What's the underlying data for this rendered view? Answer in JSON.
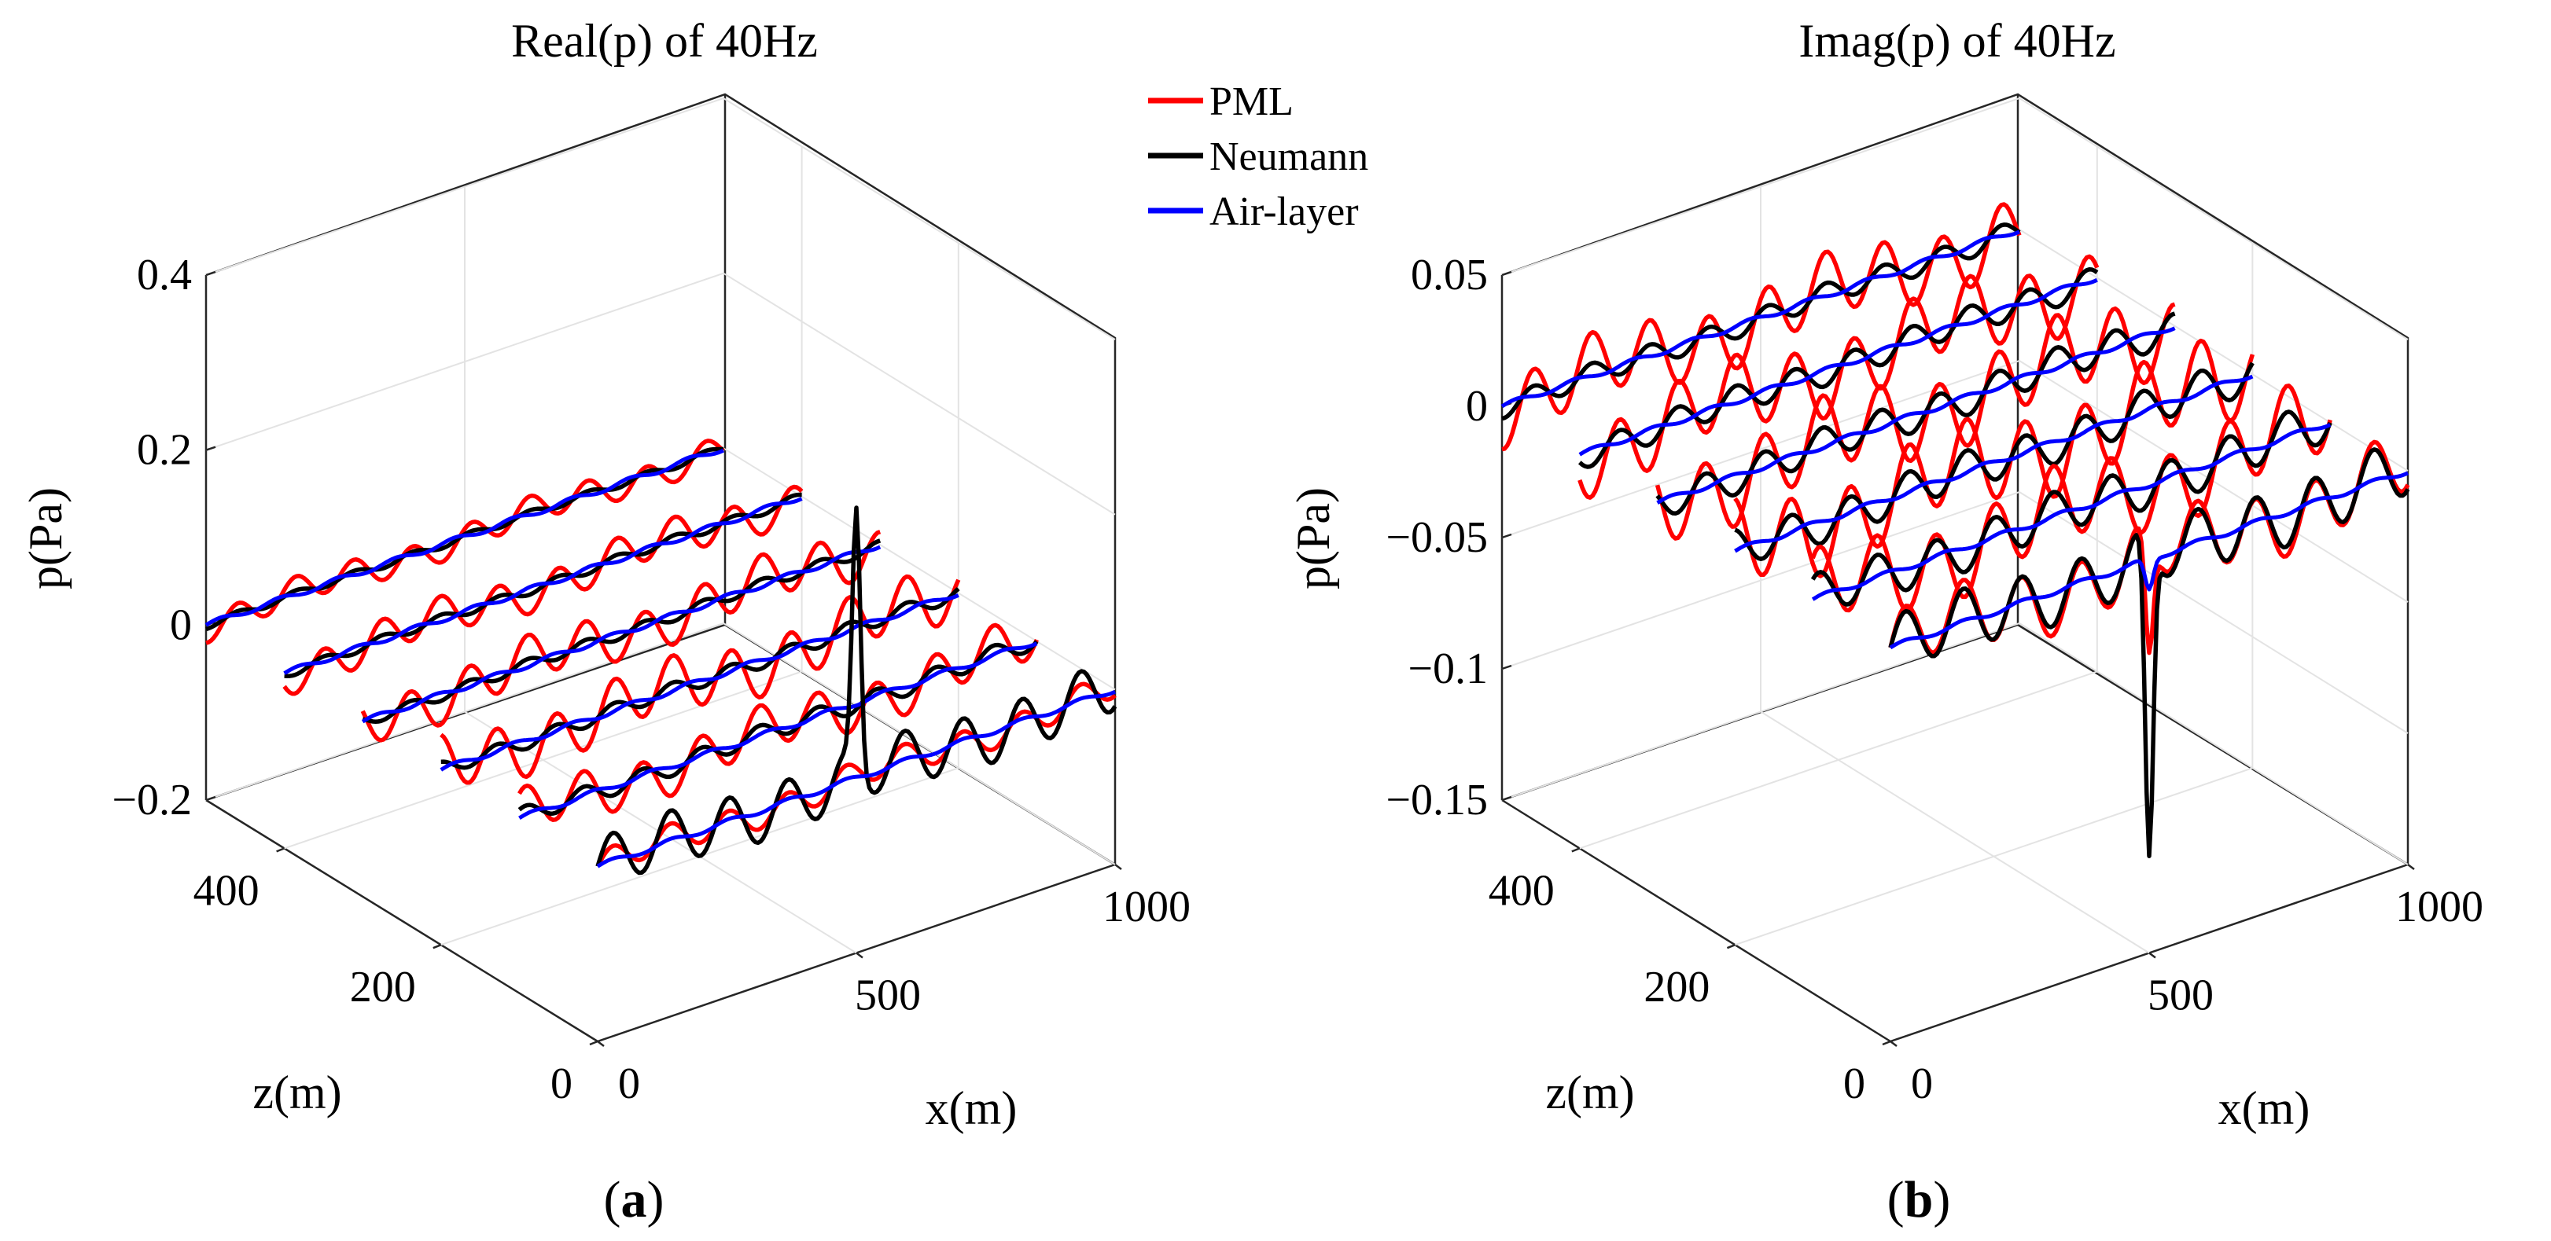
{
  "figure": {
    "legend": [
      {
        "label": "PML",
        "color": "#ff0000"
      },
      {
        "label": "Neumann",
        "color": "#000000"
      },
      {
        "label": "Air-layer",
        "color": "#0000ff"
      }
    ]
  },
  "chart_data": [
    {
      "type": "line",
      "subtype": "3d-waterfall",
      "panel": "a",
      "caption": {
        "label": "a"
      },
      "title": "Real(p) of 40Hz",
      "xlabel": "x(m)",
      "ylabel": "z(m)",
      "zlabel": "p(Pa)",
      "xlim": [
        0,
        1000
      ],
      "ylim": [
        0,
        500
      ],
      "zlim": [
        -0.2,
        0.4
      ],
      "x_ticks": [
        "0",
        "500",
        "1000"
      ],
      "y_ticks": [
        "0",
        "200",
        "400"
      ],
      "z_ticks": [
        "−0.2",
        "0",
        "0.2",
        "0.4"
      ],
      "z_tick_values": [
        -0.2,
        0,
        0.2,
        0.4
      ],
      "slices_z": [
        0,
        100,
        200,
        300,
        400,
        500
      ],
      "source": {
        "x": 500,
        "z": 0
      },
      "series": [
        {
          "name": "PML",
          "color": "#ff0000",
          "amp": 0.012,
          "peak": 0.0,
          "slice_amp": [
            0.015,
            0.025,
            0.03,
            0.025,
            0.02,
            0.015
          ]
        },
        {
          "name": "Neumann",
          "color": "#000000",
          "amp": 0.03,
          "peak": 0.29,
          "slice_amp": [
            0.03,
            0.01,
            0.008,
            0.006,
            0.005,
            0.004
          ]
        },
        {
          "name": "Air-layer",
          "color": "#0000ff",
          "amp": 0.003,
          "peak": 0.0,
          "slice_amp": [
            0.003,
            0.003,
            0.003,
            0.003,
            0.003,
            0.003
          ]
        }
      ]
    },
    {
      "type": "line",
      "subtype": "3d-waterfall",
      "panel": "b",
      "caption": {
        "label": "b"
      },
      "title": "Imag(p) of 40Hz",
      "xlabel": "x(m)",
      "ylabel": "z(m)",
      "zlabel": "p(Pa)",
      "xlim": [
        0,
        1000
      ],
      "ylim": [
        0,
        500
      ],
      "zlim": [
        -0.15,
        0.05
      ],
      "x_ticks": [
        "0",
        "500",
        "1000"
      ],
      "y_ticks": [
        "0",
        "200",
        "400"
      ],
      "z_ticks": [
        "−0.15",
        "−0.1",
        "−0.05",
        "0",
        "0.05"
      ],
      "z_tick_values": [
        -0.15,
        -0.1,
        -0.05,
        0,
        0.05
      ],
      "slices_z": [
        0,
        100,
        200,
        300,
        400,
        500
      ],
      "source": {
        "x": 500,
        "z": 0
      },
      "series": [
        {
          "name": "PML",
          "color": "#ff0000",
          "amp": 0.012,
          "peak": -0.045,
          "slice_amp": [
            0.012,
            0.014,
            0.015,
            0.014,
            0.013,
            0.012
          ]
        },
        {
          "name": "Neumann",
          "color": "#000000",
          "amp": 0.01,
          "peak": -0.12,
          "slice_amp": [
            0.011,
            0.008,
            0.007,
            0.006,
            0.005,
            0.004
          ]
        },
        {
          "name": "Air-layer",
          "color": "#0000ff",
          "amp": 0.001,
          "peak": -0.012,
          "slice_amp": [
            0.001,
            0.001,
            0.001,
            0.001,
            0.001,
            0.001
          ]
        }
      ]
    }
  ]
}
